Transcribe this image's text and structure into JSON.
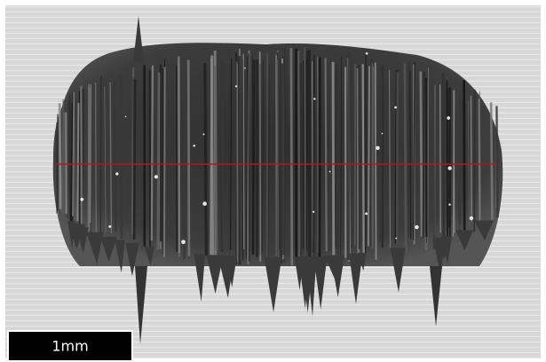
{
  "scale_bar": {
    "label": "1mm"
  }
}
